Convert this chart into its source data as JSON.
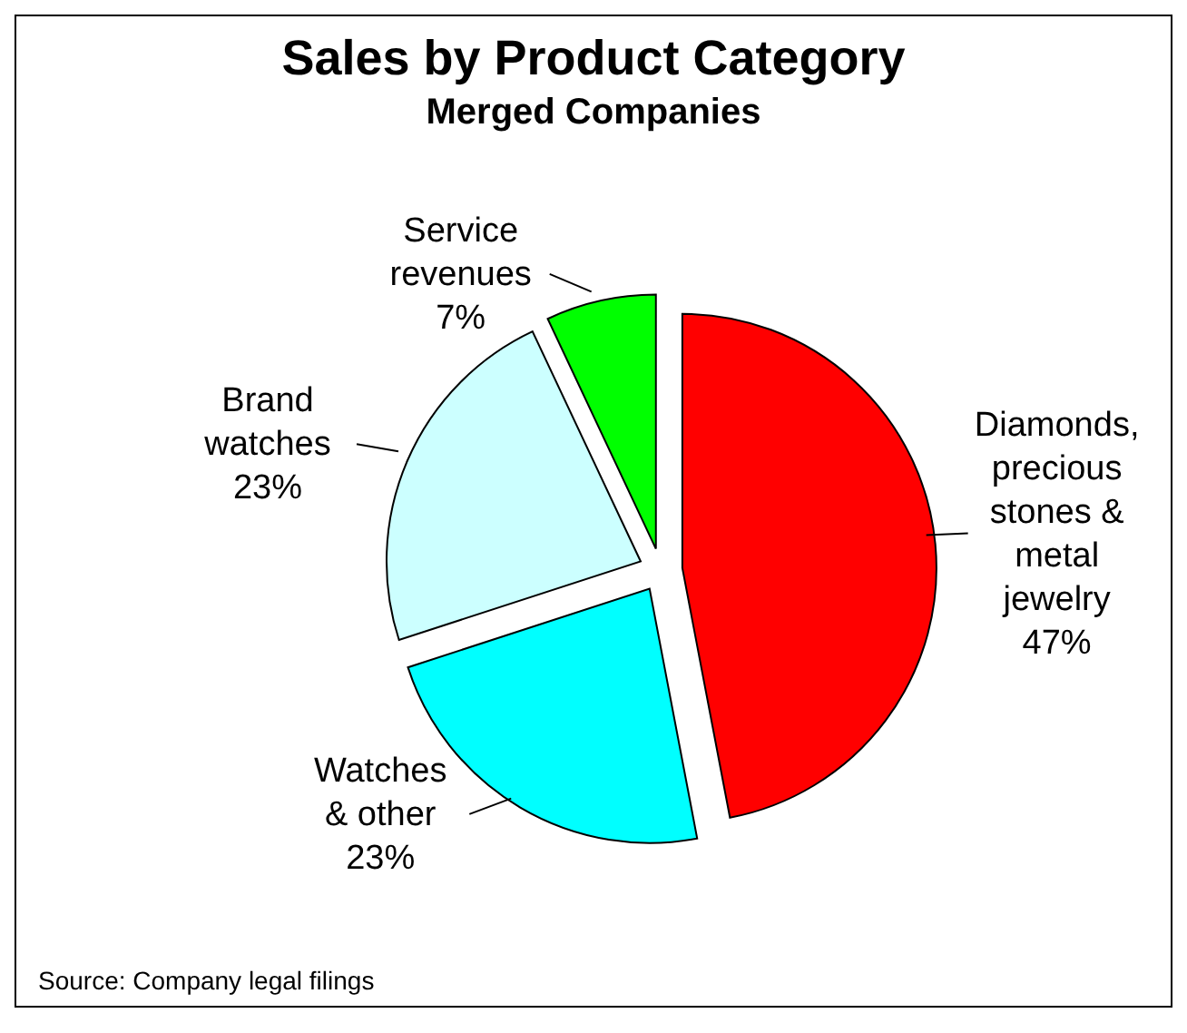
{
  "chart_data": {
    "type": "pie",
    "title": "Sales by Product Category",
    "subtitle": "Merged Companies",
    "categories": [
      "Diamonds, precious stones & metal jewelry",
      "Watches & other",
      "Brand watches",
      "Service revenues"
    ],
    "values": [
      47,
      23,
      23,
      7
    ],
    "colors": [
      "#ff0000",
      "#00ffff",
      "#ccffff",
      "#00ff00"
    ],
    "value_labels": [
      "47%",
      "23%",
      "23%",
      "7%"
    ],
    "annotations": [
      "Source:  Company legal filings"
    ]
  }
}
